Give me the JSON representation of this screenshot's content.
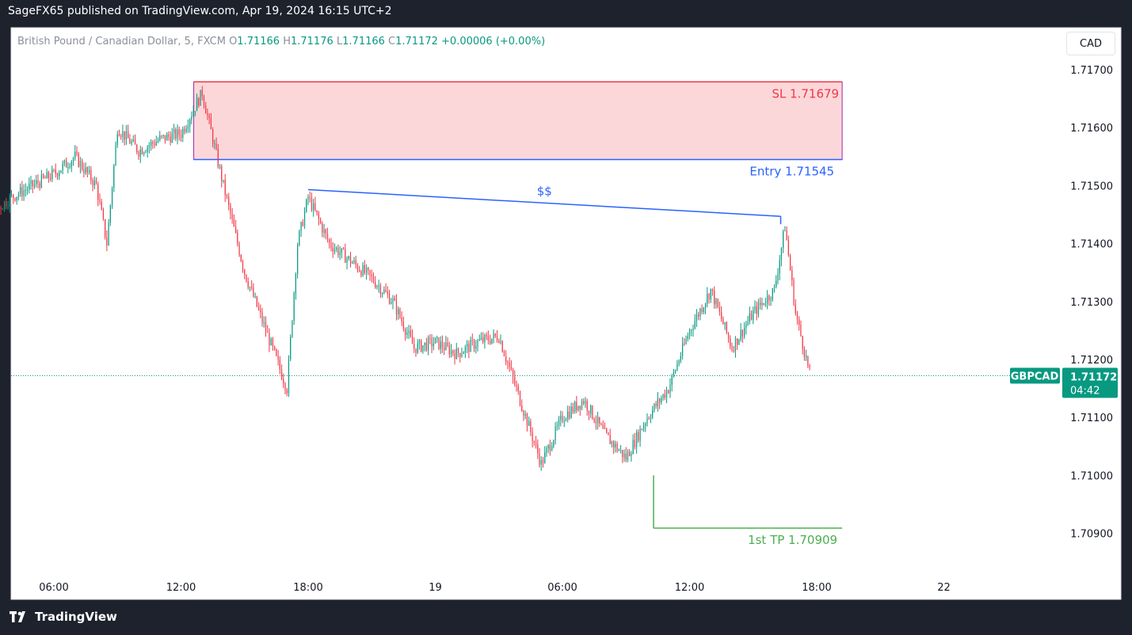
{
  "header": {
    "published": "SageFX65 published on TradingView.com, Apr 19, 2024 16:15 UTC+2"
  },
  "legend": {
    "symbol": "British Pound / Canadian Dollar, 5, FXCM",
    "o": "1.71166",
    "h": "1.71176",
    "l": "1.71166",
    "c": "1.71172",
    "chg": "+0.00006 (+0.00%)"
  },
  "currency_button": "CAD",
  "footer": {
    "brand": "TradingView"
  },
  "colors": {
    "up": "#089981",
    "down": "#f23645",
    "sl": "#f23645",
    "entry": "#2962ff",
    "tp": "#4caf50",
    "label_bg": "#089981"
  },
  "chart_data": {
    "type": "candlestick",
    "symbol": "GBPCAD",
    "timeframe": "5",
    "last_price": "1.71172",
    "countdown": "04:42",
    "ylim": [
      1.7083,
      1.7178
    ],
    "y_ticks": [
      "1.71700",
      "1.71600",
      "1.71500",
      "1.71400",
      "1.71300",
      "1.71200",
      "1.71100",
      "1.71000",
      "1.70900"
    ],
    "x_ticks": [
      {
        "label": "06:00",
        "t": 6
      },
      {
        "label": "12:00",
        "t": 12
      },
      {
        "label": "18:00",
        "t": 18
      },
      {
        "label": "19",
        "t": 24
      },
      {
        "label": "06:00",
        "t": 30
      },
      {
        "label": "12:00",
        "t": 36
      },
      {
        "label": "18:00",
        "t": 42
      },
      {
        "label": "22",
        "t": 48
      }
    ],
    "price_path": [
      [
        0,
        1.7147
      ],
      [
        1,
        1.7146
      ],
      [
        2,
        1.7148
      ],
      [
        3,
        1.7145
      ],
      [
        4,
        1.7148
      ],
      [
        5,
        1.715
      ],
      [
        6,
        1.7152
      ],
      [
        7,
        1.7155
      ],
      [
        8,
        1.715
      ],
      [
        8.5,
        1.714
      ],
      [
        9,
        1.716
      ],
      [
        10,
        1.7156
      ],
      [
        11,
        1.7158
      ],
      [
        12,
        1.7159
      ],
      [
        13,
        1.7166
      ],
      [
        14,
        1.715
      ],
      [
        15,
        1.7135
      ],
      [
        16,
        1.7125
      ],
      [
        17,
        1.7115
      ],
      [
        17.5,
        1.714
      ],
      [
        18,
        1.7148
      ],
      [
        19,
        1.714
      ],
      [
        20,
        1.7137
      ],
      [
        21,
        1.7134
      ],
      [
        22,
        1.713
      ],
      [
        23,
        1.7122
      ],
      [
        24,
        1.7123
      ],
      [
        25,
        1.7121
      ],
      [
        26,
        1.7123
      ],
      [
        27,
        1.7124
      ],
      [
        28,
        1.7113
      ],
      [
        29,
        1.7102
      ],
      [
        30,
        1.711
      ],
      [
        31,
        1.7113
      ],
      [
        32,
        1.7107
      ],
      [
        33,
        1.7103
      ],
      [
        34,
        1.711
      ],
      [
        35,
        1.7115
      ],
      [
        36,
        1.7125
      ],
      [
        37,
        1.7132
      ],
      [
        38,
        1.7122
      ],
      [
        39,
        1.7128
      ],
      [
        40,
        1.7132
      ],
      [
        40.5,
        1.7143
      ],
      [
        41,
        1.7128
      ],
      [
        41.7,
        1.7117
      ]
    ],
    "annotations": {
      "sl": {
        "label": "SL 1.71679",
        "price": 1.71679
      },
      "entry": {
        "label": "Entry  1.71545",
        "price": 1.71545
      },
      "tp": {
        "label": "1st TP 1.70909",
        "price": 1.70909
      },
      "liquidity": {
        "label": "$$",
        "from": [
          18,
          1.71493
        ],
        "to": [
          40.3,
          1.71447
        ]
      }
    }
  }
}
